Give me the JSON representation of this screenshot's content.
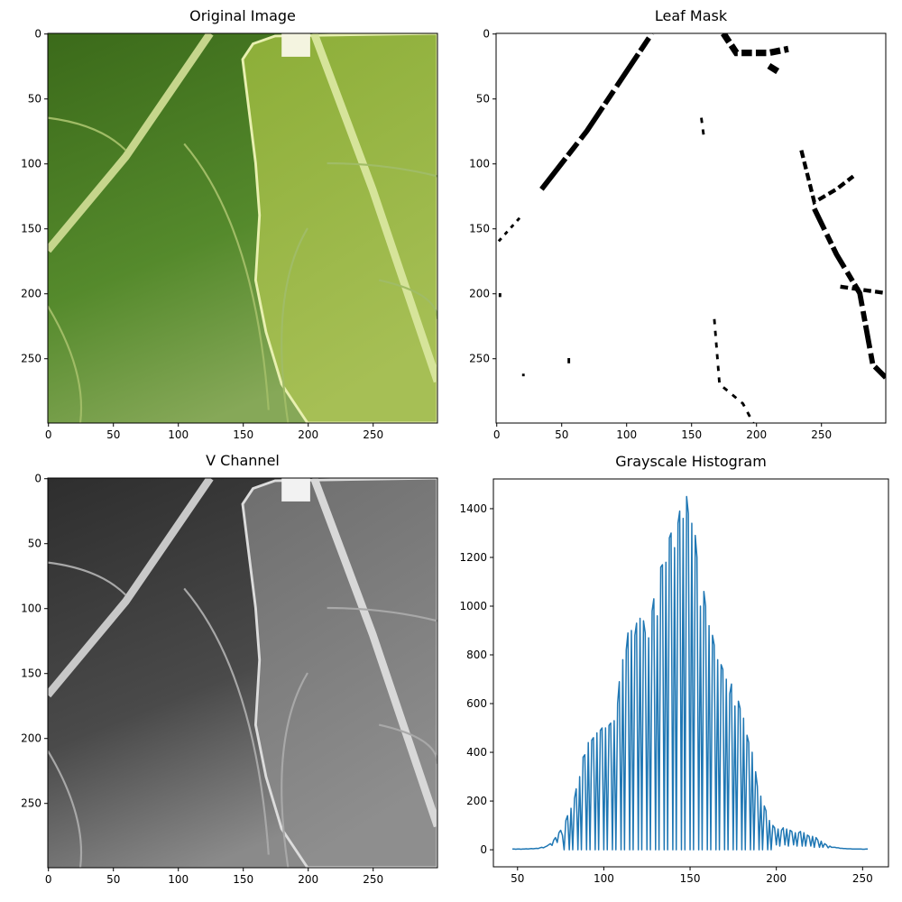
{
  "chart_data": [
    {
      "type": "image",
      "title": "Original Image",
      "xlim": [
        -0.5,
        299.5
      ],
      "ylim": [
        299.5,
        -0.5
      ],
      "xticks": [
        0,
        50,
        100,
        150,
        200,
        250
      ],
      "yticks": [
        0,
        50,
        100,
        150,
        200,
        250
      ]
    },
    {
      "type": "image",
      "title": "Leaf Mask",
      "xlim": [
        -0.5,
        299.5
      ],
      "ylim": [
        299.5,
        -0.5
      ],
      "xticks": [
        0,
        50,
        100,
        150,
        200,
        250
      ],
      "yticks": [
        0,
        50,
        100,
        150,
        200,
        250
      ]
    },
    {
      "type": "image",
      "title": "V Channel",
      "xlim": [
        -0.5,
        299.5
      ],
      "ylim": [
        299.5,
        -0.5
      ],
      "xticks": [
        0,
        50,
        100,
        150,
        200,
        250
      ],
      "yticks": [
        0,
        50,
        100,
        150,
        200,
        250
      ]
    },
    {
      "type": "line",
      "title": "Grayscale Histogram",
      "color": "#1f77b4",
      "xlim": [
        36,
        265
      ],
      "ylim": [
        -70,
        1522
      ],
      "xticks": [
        50,
        100,
        150,
        200,
        250
      ],
      "yticks": [
        0,
        200,
        400,
        600,
        800,
        1000,
        1200,
        1400
      ],
      "x": [
        47,
        48,
        49,
        50,
        51,
        52,
        53,
        54,
        55,
        56,
        57,
        58,
        59,
        60,
        61,
        62,
        63,
        64,
        65,
        66,
        67,
        68,
        69,
        70,
        71,
        72,
        73,
        74,
        75,
        76,
        77,
        78,
        79,
        80,
        81,
        82,
        83,
        84,
        85,
        86,
        87,
        88,
        89,
        90,
        91,
        92,
        93,
        94,
        95,
        96,
        97,
        98,
        99,
        100,
        101,
        102,
        103,
        104,
        105,
        106,
        107,
        108,
        109,
        110,
        111,
        112,
        113,
        114,
        115,
        116,
        117,
        118,
        119,
        120,
        121,
        122,
        123,
        124,
        125,
        126,
        127,
        128,
        129,
        130,
        131,
        132,
        133,
        134,
        135,
        136,
        137,
        138,
        139,
        140,
        141,
        142,
        143,
        144,
        145,
        146,
        147,
        148,
        149,
        150,
        151,
        152,
        153,
        154,
        155,
        156,
        157,
        158,
        159,
        160,
        161,
        162,
        163,
        164,
        165,
        166,
        167,
        168,
        169,
        170,
        171,
        172,
        173,
        174,
        175,
        176,
        177,
        178,
        179,
        180,
        181,
        182,
        183,
        184,
        185,
        186,
        187,
        188,
        189,
        190,
        191,
        192,
        193,
        194,
        195,
        196,
        197,
        198,
        199,
        200,
        201,
        202,
        203,
        204,
        205,
        206,
        207,
        208,
        209,
        210,
        211,
        212,
        213,
        214,
        215,
        216,
        217,
        218,
        219,
        220,
        221,
        222,
        223,
        224,
        225,
        226,
        227,
        228,
        229,
        230,
        231,
        232,
        233,
        234,
        235,
        236,
        237,
        238,
        239,
        240,
        241,
        242,
        243,
        244,
        245,
        246,
        247,
        248,
        249,
        250,
        251,
        252,
        253
      ],
      "values": [
        3,
        3,
        2,
        3,
        3,
        2,
        3,
        3,
        4,
        3,
        4,
        5,
        4,
        5,
        6,
        5,
        8,
        10,
        8,
        12,
        15,
        20,
        25,
        18,
        40,
        50,
        30,
        70,
        80,
        60,
        0,
        120,
        140,
        0,
        170,
        0,
        210,
        250,
        0,
        300,
        0,
        380,
        390,
        0,
        440,
        0,
        450,
        460,
        0,
        480,
        0,
        490,
        500,
        0,
        500,
        0,
        510,
        520,
        0,
        530,
        0,
        600,
        690,
        0,
        780,
        0,
        820,
        890,
        0,
        900,
        0,
        880,
        930,
        0,
        950,
        0,
        940,
        890,
        0,
        870,
        0,
        980,
        1030,
        0,
        960,
        0,
        1160,
        1170,
        0,
        1180,
        0,
        1280,
        1300,
        0,
        1240,
        0,
        1340,
        1390,
        0,
        1360,
        0,
        1450,
        1380,
        0,
        1340,
        0,
        1290,
        1200,
        0,
        1000,
        0,
        1060,
        1000,
        0,
        920,
        0,
        880,
        840,
        0,
        780,
        0,
        760,
        740,
        0,
        700,
        0,
        640,
        680,
        0,
        590,
        0,
        610,
        580,
        0,
        540,
        0,
        470,
        440,
        0,
        400,
        0,
        320,
        260,
        0,
        220,
        0,
        180,
        160,
        0,
        120,
        0,
        100,
        90,
        20,
        85,
        15,
        80,
        90,
        20,
        85,
        15,
        80,
        75,
        20,
        70,
        15,
        70,
        75,
        15,
        70,
        15,
        60,
        55,
        15,
        55,
        10,
        50,
        40,
        10,
        35,
        10,
        25,
        20,
        8,
        15,
        10,
        10,
        10,
        8,
        8,
        6,
        6,
        5,
        5,
        4,
        4,
        4,
        3,
        3,
        3,
        3,
        3,
        3,
        2,
        2,
        3,
        3
      ]
    }
  ]
}
